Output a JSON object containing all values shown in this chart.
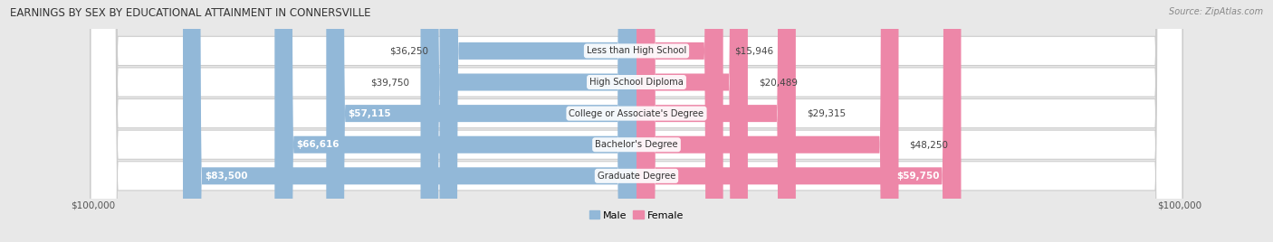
{
  "title": "EARNINGS BY SEX BY EDUCATIONAL ATTAINMENT IN CONNERSVILLE",
  "source": "Source: ZipAtlas.com",
  "categories": [
    "Less than High School",
    "High School Diploma",
    "College or Associate's Degree",
    "Bachelor's Degree",
    "Graduate Degree"
  ],
  "male_values": [
    36250,
    39750,
    57115,
    66616,
    83500
  ],
  "female_values": [
    15946,
    20489,
    29315,
    48250,
    59750
  ],
  "male_color": "#92b8d8",
  "female_color": "#ed87a8",
  "male_label": "Male",
  "female_label": "Female",
  "axis_max": 100000,
  "bg_color": "#e8e8e8",
  "row_bg_color": "#ffffff",
  "row_border_color": "#cccccc",
  "label_color": "#333333",
  "title_color": "#333333",
  "value_label_outside_color": "#444444",
  "value_label_inside_color": "#ffffff",
  "inside_threshold": 55000
}
